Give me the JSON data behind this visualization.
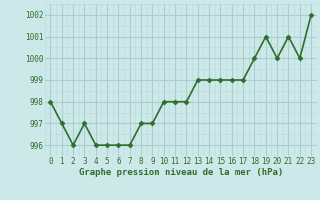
{
  "x": [
    0,
    1,
    2,
    3,
    4,
    5,
    6,
    7,
    8,
    9,
    10,
    11,
    12,
    13,
    14,
    15,
    16,
    17,
    18,
    19,
    20,
    21,
    22,
    23
  ],
  "y": [
    998,
    997,
    996,
    997,
    996,
    996,
    996,
    996,
    997,
    997,
    998,
    998,
    998,
    999,
    999,
    999,
    999,
    999,
    1000,
    1001,
    1000,
    1001,
    1000,
    1002
  ],
  "line_color": "#2e6e2e",
  "marker_color": "#2e6e2e",
  "bg_color": "#cce8e8",
  "grid_major_color": "#aacece",
  "grid_minor_color": "#bbdddd",
  "xlabel": "Graphe pression niveau de la mer (hPa)",
  "ylim": [
    995.5,
    1002.5
  ],
  "xlim": [
    -0.5,
    23.5
  ],
  "yticks": [
    996,
    997,
    998,
    999,
    1000,
    1001,
    1002
  ],
  "xticks": [
    0,
    1,
    2,
    3,
    4,
    5,
    6,
    7,
    8,
    9,
    10,
    11,
    12,
    13,
    14,
    15,
    16,
    17,
    18,
    19,
    20,
    21,
    22,
    23
  ],
  "font_color": "#2e6e2e",
  "label_fontsize": 6.5,
  "tick_fontsize": 5.5,
  "line_width": 1.2,
  "marker_size": 2.5,
  "figsize": [
    3.2,
    2.0
  ],
  "dpi": 100
}
